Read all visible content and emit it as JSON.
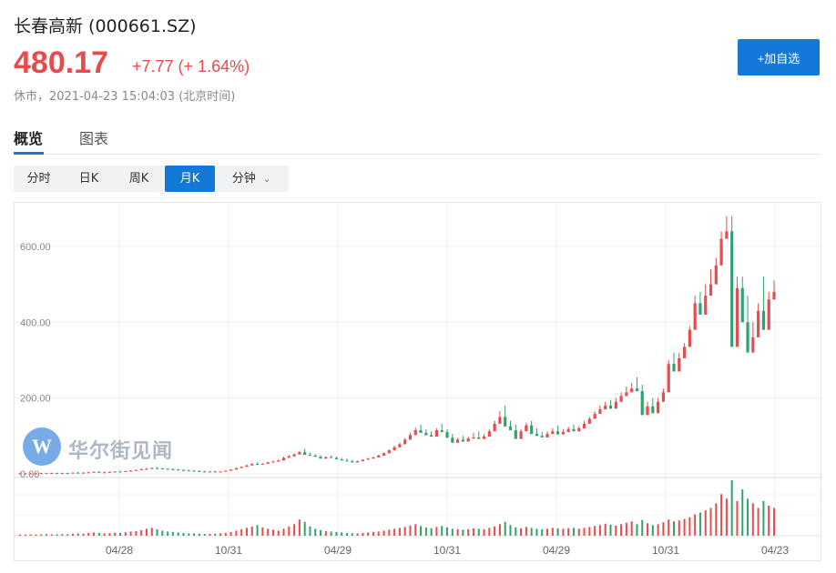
{
  "header": {
    "title": "长春高新  (000661.SZ)",
    "price": "480.17",
    "change": "+7.77 (+ 1.64%)",
    "status": "休市，2021-04-23 15:04:03 (北京时间)",
    "watch_button": "+加自选"
  },
  "tabs": [
    {
      "label": "概览",
      "active": true
    },
    {
      "label": "图表",
      "active": false
    }
  ],
  "periods": [
    {
      "label": "分时",
      "active": false
    },
    {
      "label": "日K",
      "active": false
    },
    {
      "label": "周K",
      "active": false
    },
    {
      "label": "月K",
      "active": true
    },
    {
      "label": "分钟",
      "active": false
    }
  ],
  "watermark": {
    "logo": "W",
    "text": "华尔街见闻"
  },
  "colors": {
    "up": "#e84b4b",
    "down": "#2ea36e",
    "accent": "#1478d8"
  },
  "chart_data": {
    "type": "candlestick",
    "y_ticks": [
      "600.00",
      "400.00",
      "200.00",
      "0.00"
    ],
    "y_tick_values": [
      600,
      400,
      200,
      0
    ],
    "ylim": [
      -5,
      715
    ],
    "x_ticks": [
      "04/28",
      "10/31",
      "04/29",
      "10/31",
      "04/29",
      "10/31",
      "04/23"
    ],
    "candles": [
      [
        0,
        3,
        1
      ],
      [
        1,
        2,
        1
      ],
      [
        1,
        2,
        1
      ],
      [
        1,
        2,
        1
      ],
      [
        1,
        3,
        2
      ],
      [
        2,
        3,
        1
      ],
      [
        1,
        3,
        2
      ],
      [
        2,
        3,
        1
      ],
      [
        1,
        3,
        2
      ],
      [
        2,
        3,
        1
      ],
      [
        1,
        3,
        3
      ],
      [
        3,
        5,
        2
      ],
      [
        2,
        4,
        3
      ],
      [
        3,
        5,
        4
      ],
      [
        4,
        6,
        5
      ],
      [
        5,
        7,
        4
      ],
      [
        4,
        6,
        4
      ],
      [
        4,
        6,
        5
      ],
      [
        5,
        7,
        6
      ],
      [
        6,
        8,
        5
      ],
      [
        5,
        8,
        7
      ],
      [
        7,
        10,
        8
      ],
      [
        8,
        11,
        10
      ],
      [
        10,
        14,
        12
      ],
      [
        12,
        16,
        13
      ],
      [
        13,
        17,
        15
      ],
      [
        15,
        18,
        14
      ],
      [
        14,
        16,
        13
      ],
      [
        13,
        15,
        12
      ],
      [
        12,
        14,
        11
      ],
      [
        11,
        13,
        10
      ],
      [
        10,
        12,
        9
      ],
      [
        9,
        11,
        8
      ],
      [
        8,
        10,
        7
      ],
      [
        7,
        9,
        6
      ],
      [
        6,
        8,
        5
      ],
      [
        5,
        7,
        6
      ],
      [
        6,
        8,
        5
      ],
      [
        5,
        7,
        6
      ],
      [
        6,
        9,
        8
      ],
      [
        8,
        12,
        11
      ],
      [
        11,
        16,
        15
      ],
      [
        15,
        20,
        18
      ],
      [
        18,
        24,
        22
      ],
      [
        22,
        28,
        26
      ],
      [
        26,
        30,
        24
      ],
      [
        24,
        28,
        26
      ],
      [
        26,
        32,
        30
      ],
      [
        30,
        35,
        32
      ],
      [
        32,
        38,
        35
      ],
      [
        35,
        45,
        42
      ],
      [
        42,
        50,
        46
      ],
      [
        46,
        54,
        51
      ],
      [
        51,
        60,
        57
      ],
      [
        57,
        66,
        50
      ],
      [
        50,
        56,
        48
      ],
      [
        48,
        52,
        45
      ],
      [
        45,
        49,
        40
      ],
      [
        40,
        46,
        44
      ],
      [
        44,
        48,
        42
      ],
      [
        42,
        46,
        38
      ],
      [
        38,
        42,
        35
      ],
      [
        35,
        40,
        33
      ],
      [
        33,
        37,
        30
      ],
      [
        30,
        35,
        33
      ],
      [
        33,
        38,
        37
      ],
      [
        37,
        42,
        40
      ],
      [
        40,
        45,
        43
      ],
      [
        43,
        50,
        48
      ],
      [
        48,
        56,
        54
      ],
      [
        54,
        64,
        62
      ],
      [
        62,
        74,
        70
      ],
      [
        70,
        82,
        78
      ],
      [
        78,
        94,
        90
      ],
      [
        90,
        108,
        102
      ],
      [
        102,
        122,
        115
      ],
      [
        115,
        130,
        108
      ],
      [
        108,
        118,
        102
      ],
      [
        102,
        112,
        98
      ],
      [
        98,
        120,
        115
      ],
      [
        115,
        132,
        110
      ],
      [
        110,
        118,
        95
      ],
      [
        95,
        105,
        82
      ],
      [
        82,
        95,
        90
      ],
      [
        90,
        100,
        85
      ],
      [
        85,
        98,
        93
      ],
      [
        93,
        108,
        96
      ],
      [
        96,
        112,
        92
      ],
      [
        92,
        105,
        98
      ],
      [
        98,
        118,
        112
      ],
      [
        112,
        140,
        132
      ],
      [
        132,
        165,
        150
      ],
      [
        150,
        180,
        125
      ],
      [
        125,
        140,
        115
      ],
      [
        115,
        130,
        92
      ],
      [
        92,
        118,
        112
      ],
      [
        112,
        135,
        128
      ],
      [
        128,
        140,
        105
      ],
      [
        105,
        120,
        100
      ],
      [
        100,
        110,
        96
      ],
      [
        96,
        112,
        105
      ],
      [
        105,
        120,
        112
      ],
      [
        112,
        128,
        104
      ],
      [
        104,
        118,
        110
      ],
      [
        110,
        124,
        118
      ],
      [
        118,
        130,
        112
      ],
      [
        112,
        126,
        120
      ],
      [
        120,
        140,
        132
      ],
      [
        132,
        150,
        145
      ],
      [
        145,
        165,
        158
      ],
      [
        158,
        180,
        170
      ],
      [
        170,
        190,
        180
      ],
      [
        180,
        195,
        172
      ],
      [
        172,
        200,
        190
      ],
      [
        190,
        215,
        205
      ],
      [
        205,
        230,
        215
      ],
      [
        215,
        240,
        225
      ],
      [
        225,
        255,
        218
      ],
      [
        218,
        235,
        155
      ],
      [
        155,
        190,
        178
      ],
      [
        178,
        200,
        160
      ],
      [
        160,
        200,
        190
      ],
      [
        190,
        225,
        215
      ],
      [
        215,
        300,
        290
      ],
      [
        290,
        320,
        270
      ],
      [
        270,
        320,
        305
      ],
      [
        305,
        345,
        335
      ],
      [
        335,
        390,
        380
      ],
      [
        380,
        470,
        450
      ],
      [
        450,
        480,
        420
      ],
      [
        420,
        500,
        470
      ],
      [
        470,
        540,
        500
      ],
      [
        500,
        570,
        550
      ],
      [
        550,
        640,
        620
      ],
      [
        620,
        680,
        640
      ],
      [
        640,
        680,
        335
      ],
      [
        335,
        520,
        490
      ],
      [
        490,
        520,
        400
      ],
      [
        400,
        470,
        320
      ],
      [
        320,
        400,
        360
      ],
      [
        360,
        450,
        430
      ],
      [
        430,
        520,
        380
      ],
      [
        380,
        480,
        460
      ],
      [
        460,
        510,
        480
      ]
    ],
    "volumes": [
      5,
      5,
      6,
      5,
      6,
      7,
      6,
      6,
      7,
      6,
      8,
      10,
      9,
      12,
      14,
      12,
      10,
      11,
      13,
      12,
      15,
      18,
      20,
      24,
      30,
      34,
      28,
      22,
      18,
      16,
      14,
      12,
      10,
      10,
      9,
      8,
      8,
      9,
      10,
      12,
      16,
      22,
      28,
      34,
      40,
      46,
      36,
      30,
      26,
      22,
      30,
      40,
      50,
      70,
      60,
      40,
      30,
      24,
      20,
      18,
      16,
      14,
      12,
      11,
      10,
      12,
      14,
      16,
      18,
      22,
      26,
      30,
      34,
      38,
      44,
      50,
      42,
      36,
      32,
      38,
      42,
      36,
      30,
      28,
      26,
      28,
      32,
      30,
      28,
      34,
      40,
      50,
      60,
      46,
      36,
      32,
      38,
      34,
      30,
      28,
      30,
      34,
      32,
      30,
      32,
      34,
      30,
      34,
      38,
      42,
      46,
      52,
      48,
      44,
      50,
      56,
      62,
      50,
      68,
      54,
      46,
      50,
      58,
      70,
      62,
      66,
      72,
      80,
      92,
      100,
      110,
      120,
      140,
      180,
      160,
      240,
      150,
      200,
      160,
      140,
      120,
      150,
      130,
      120
    ]
  }
}
